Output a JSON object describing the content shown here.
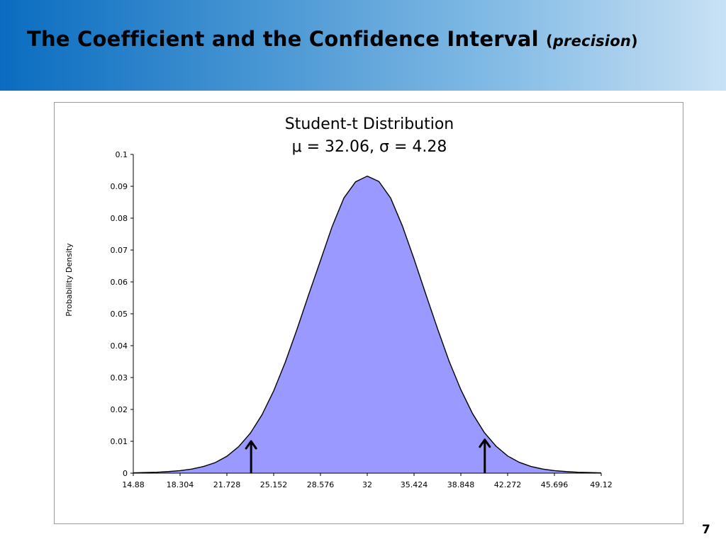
{
  "slide": {
    "title_main": "The Coefficient and the Confidence Interval",
    "title_open_paren": "(",
    "title_emphasis": "precision",
    "title_close_paren": ")",
    "page_number": "7",
    "header_gradient": [
      "#0a6cc0",
      "#c9e1f4"
    ]
  },
  "chart_data": {
    "type": "area",
    "title": "Student-t Distribution",
    "subtitle": "μ = 32.06, σ = 4.28",
    "xlabel": "",
    "ylabel": "Probability Density",
    "x_ticks": [
      "14.88",
      "18.304",
      "21.728",
      "25.152",
      "28.576",
      "32",
      "35.424",
      "38.848",
      "42.272",
      "45.696",
      "49.12"
    ],
    "y_ticks": [
      "0",
      "0.01",
      "0.02",
      "0.03",
      "0.04",
      "0.05",
      "0.06",
      "0.07",
      "0.08",
      "0.09",
      "0.1"
    ],
    "xlim": [
      14.88,
      49.12
    ],
    "ylim": [
      0,
      0.1
    ],
    "grid": false,
    "fill_color": "#9999ff",
    "line_color": "#000000",
    "series": [
      {
        "x": [
          14.88,
          15.736,
          16.592,
          17.448,
          18.304,
          19.16,
          20.016,
          20.872,
          21.728,
          22.584,
          23.44,
          24.296,
          25.152,
          26.008,
          26.864,
          27.72,
          28.576,
          29.432,
          30.288,
          31.144,
          32.0,
          32.856,
          33.712,
          34.568,
          35.424,
          36.28,
          37.136,
          37.992,
          38.848,
          39.704,
          40.56,
          41.416,
          42.272,
          43.128,
          43.984,
          44.84,
          45.696,
          46.552,
          47.408,
          48.264,
          49.12
        ],
        "y": [
          0.0001,
          0.0002,
          0.0003,
          0.0005,
          0.0008,
          0.0013,
          0.0021,
          0.0033,
          0.0053,
          0.0083,
          0.0125,
          0.0183,
          0.0258,
          0.0349,
          0.0452,
          0.0561,
          0.0667,
          0.0774,
          0.0863,
          0.0914,
          0.0932,
          0.0915,
          0.0863,
          0.0776,
          0.0672,
          0.0562,
          0.0454,
          0.0351,
          0.0262,
          0.0187,
          0.0128,
          0.0085,
          0.0054,
          0.0034,
          0.0021,
          0.0013,
          0.0008,
          0.0005,
          0.0003,
          0.0002,
          0.0001
        ]
      }
    ],
    "annotations": [
      {
        "type": "arrow",
        "x": 23.5,
        "y_from": 0,
        "y_to": 0.01
      },
      {
        "type": "arrow",
        "x": 40.6,
        "y_from": 0,
        "y_to": 0.0105
      }
    ]
  }
}
